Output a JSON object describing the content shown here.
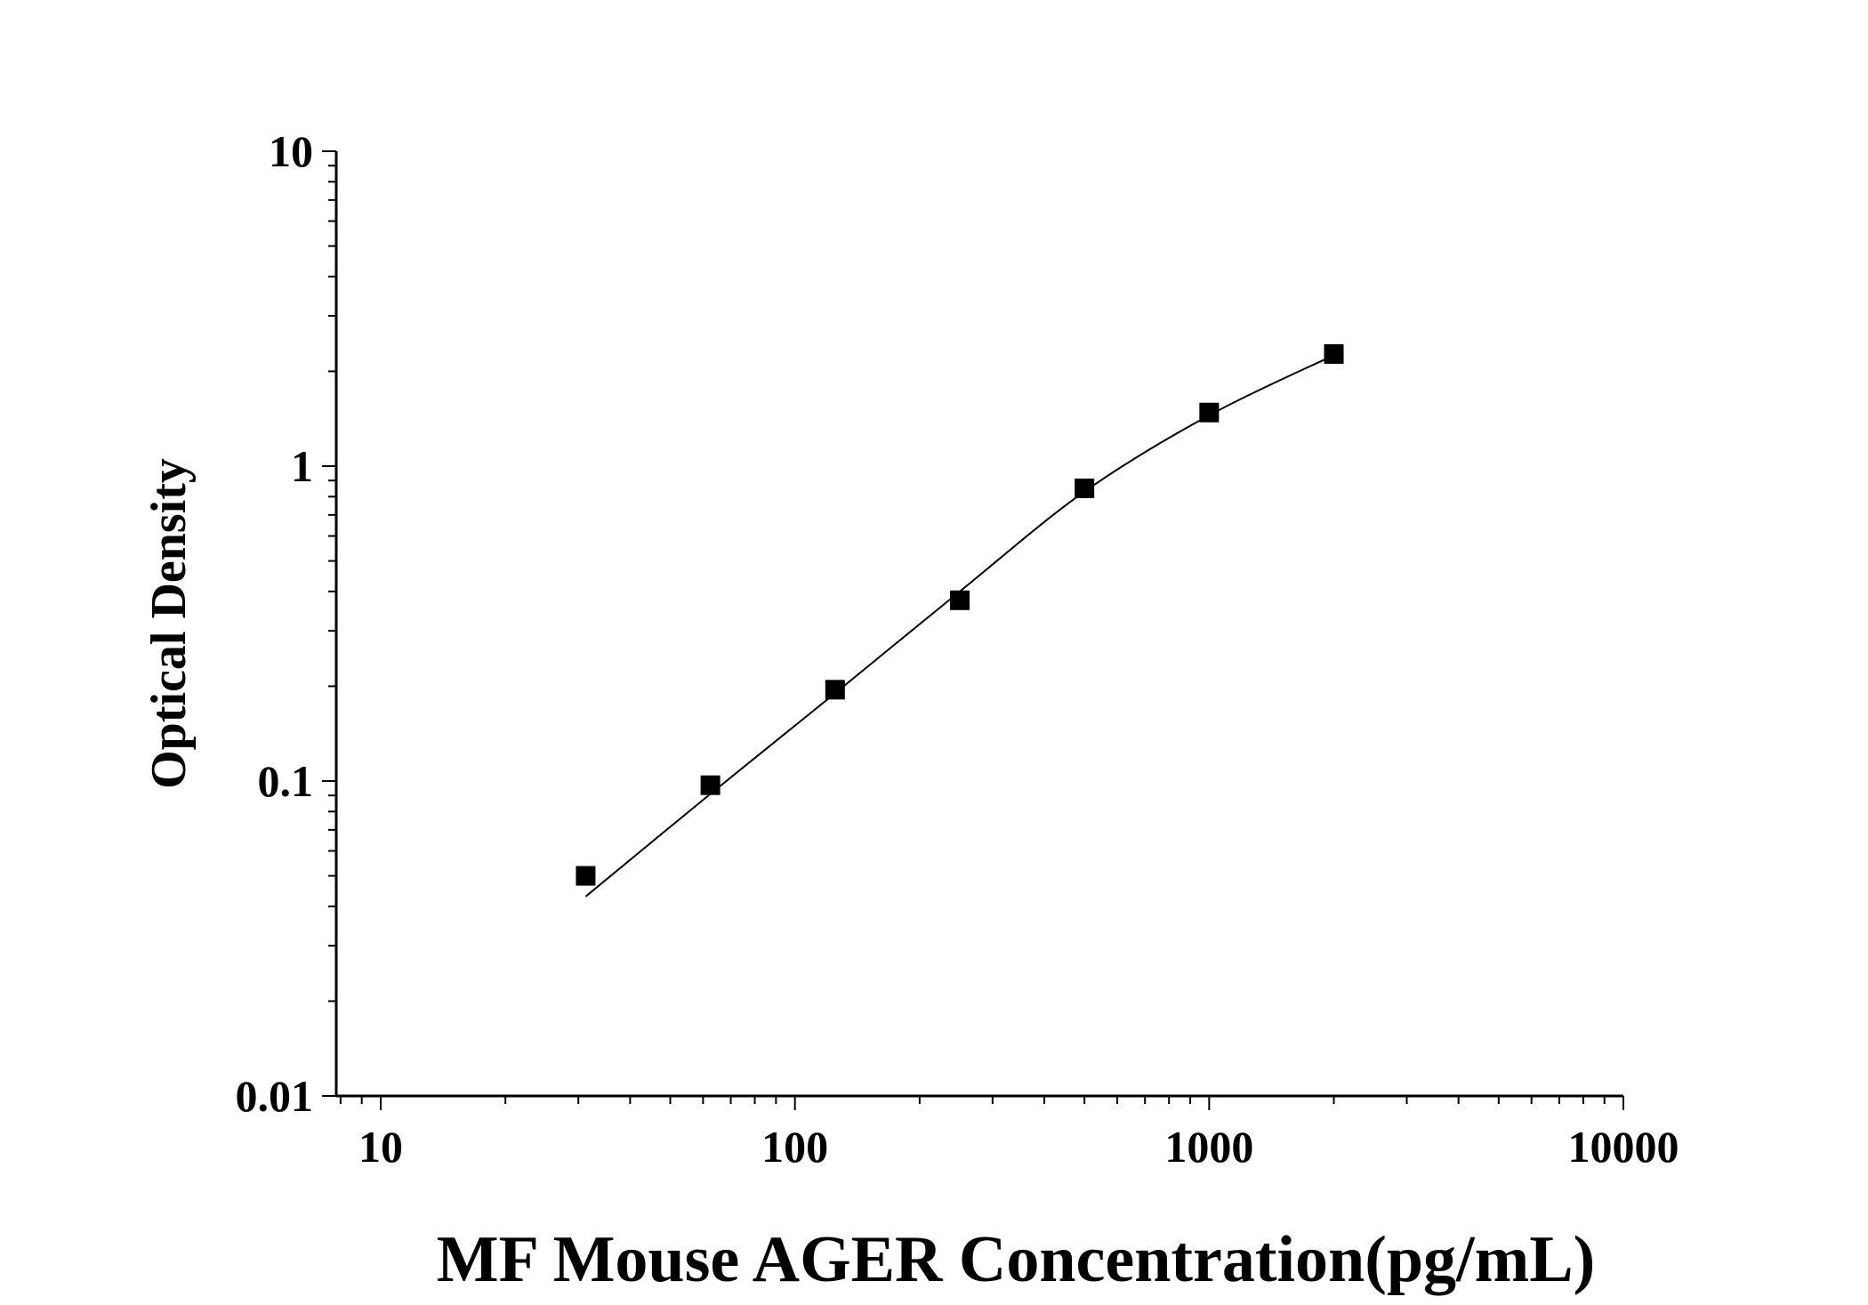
{
  "chart_data": {
    "type": "scatter",
    "title": "",
    "xlabel": "MF Mouse AGER Concentration(pg/mL)",
    "ylabel": "Optical Density",
    "xscale": "log",
    "yscale": "log",
    "xlim": [
      8,
      10000
    ],
    "ylim": [
      0.01,
      10
    ],
    "x_ticks": [
      {
        "value": 10,
        "label": "10"
      },
      {
        "value": 100,
        "label": "100"
      },
      {
        "value": 1000,
        "label": "1000"
      },
      {
        "value": 10000,
        "label": "10000"
      }
    ],
    "y_ticks": [
      {
        "value": 0.01,
        "label": "0.01"
      },
      {
        "value": 0.1,
        "label": "0.1"
      },
      {
        "value": 1,
        "label": "1"
      },
      {
        "value": 10,
        "label": "10"
      }
    ],
    "grid": false,
    "legend": "none",
    "series": [
      {
        "marker": "square",
        "color": "#000000",
        "x": [
          31.25,
          62.5,
          125,
          250,
          500,
          1000,
          2000
        ],
        "y": [
          0.05,
          0.097,
          0.195,
          0.375,
          0.85,
          1.48,
          2.27
        ]
      }
    ],
    "fit_curve": {
      "color": "#000000",
      "x": [
        31.25,
        62.5,
        125,
        250,
        500,
        1000,
        2000
      ],
      "y": [
        0.043,
        0.091,
        0.19,
        0.4,
        0.83,
        1.45,
        2.25
      ]
    }
  }
}
